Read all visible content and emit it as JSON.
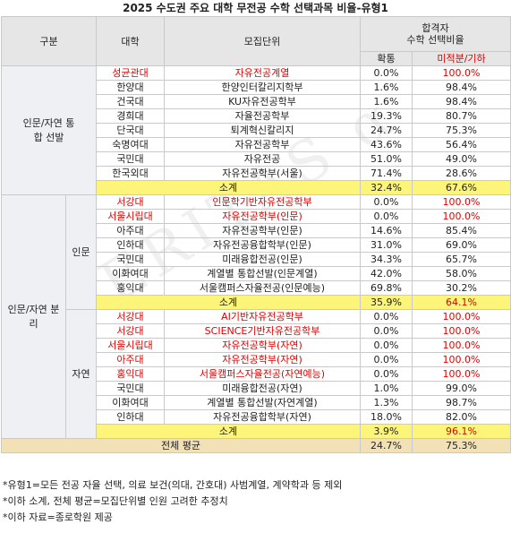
{
  "title": "2025 수도권 주요 대학 무전공 수학 선택과목 비율-유형1",
  "watermark": "VERITAS α",
  "header": {
    "col_group": "구분",
    "col_univ": "대학",
    "col_unit": "모집단위",
    "col_pass_top": "합격자",
    "col_pass_sub": "수학 선택비율",
    "col_prob": "확통",
    "col_calc": "미적분/기하"
  },
  "groups": {
    "integrated": "인문/자연 통합 선발",
    "separate": "인문/자연 분리",
    "humanities": "인문",
    "natural": "자연"
  },
  "integrated_rows": [
    {
      "univ": "성균관대",
      "unit": "자유전공계열",
      "prob": "0.0%",
      "calc": "100.0%",
      "red": true
    },
    {
      "univ": "한양대",
      "unit": "한양인터칼리지학부",
      "prob": "1.6%",
      "calc": "98.4%",
      "red": false
    },
    {
      "univ": "건국대",
      "unit": "KU자유전공학부",
      "prob": "1.6%",
      "calc": "98.4%",
      "red": false
    },
    {
      "univ": "경희대",
      "unit": "자율전공학부",
      "prob": "19.3%",
      "calc": "80.7%",
      "red": false
    },
    {
      "univ": "단국대",
      "unit": "퇴계혁신칼리지",
      "prob": "24.7%",
      "calc": "75.3%",
      "red": false
    },
    {
      "univ": "숙명여대",
      "unit": "자유전공학부",
      "prob": "43.6%",
      "calc": "56.4%",
      "red": false
    },
    {
      "univ": "국민대",
      "unit": "자유전공",
      "prob": "51.0%",
      "calc": "49.0%",
      "red": false
    },
    {
      "univ": "한국외대",
      "unit": "자유전공학부(서울)",
      "prob": "71.4%",
      "calc": "28.6%",
      "red": false
    }
  ],
  "integrated_subtotal": {
    "label": "소계",
    "prob": "32.4%",
    "calc": "67.6%"
  },
  "humanities_rows": [
    {
      "univ": "서강대",
      "unit": "인문학기반자유전공학부",
      "prob": "0.0%",
      "calc": "100.0%",
      "red": true
    },
    {
      "univ": "서울시립대",
      "unit": "자유전공학부(인문)",
      "prob": "0.0%",
      "calc": "100.0%",
      "red": true
    },
    {
      "univ": "아주대",
      "unit": "자유전공학부(인문)",
      "prob": "14.6%",
      "calc": "85.4%",
      "red": false
    },
    {
      "univ": "인하대",
      "unit": "자유전공융합학부(인문)",
      "prob": "31.0%",
      "calc": "69.0%",
      "red": false
    },
    {
      "univ": "국민대",
      "unit": "미래융합전공(인문)",
      "prob": "34.3%",
      "calc": "65.7%",
      "red": false
    },
    {
      "univ": "이화여대",
      "unit": "계열별 통합선발(인문계열)",
      "prob": "42.0%",
      "calc": "58.0%",
      "red": false
    },
    {
      "univ": "홍익대",
      "unit": "서울캠퍼스자율전공(인문예능)",
      "prob": "69.8%",
      "calc": "30.2%",
      "red": false
    }
  ],
  "humanities_subtotal": {
    "label": "소계",
    "prob": "35.9%",
    "calc": "64.1%"
  },
  "natural_rows": [
    {
      "univ": "서강대",
      "unit": "AI기반자유전공학부",
      "prob": "0.0%",
      "calc": "100.0%",
      "red": true
    },
    {
      "univ": "서강대",
      "unit": "SCIENCE기반자유전공학부",
      "prob": "0.0%",
      "calc": "100.0%",
      "red": true
    },
    {
      "univ": "서울시립대",
      "unit": "자유전공학부(자연)",
      "prob": "0.0%",
      "calc": "100.0%",
      "red": true
    },
    {
      "univ": "아주대",
      "unit": "자유전공학부(자연)",
      "prob": "0.0%",
      "calc": "100.0%",
      "red": true
    },
    {
      "univ": "홍익대",
      "unit": "서울캠퍼스자율전공(자연예능)",
      "prob": "0.0%",
      "calc": "100.0%",
      "red": true
    },
    {
      "univ": "국민대",
      "unit": "미래융합전공(자연)",
      "prob": "1.0%",
      "calc": "99.0%",
      "red": false
    },
    {
      "univ": "이화여대",
      "unit": "계열별 통합선발(자연계열)",
      "prob": "1.3%",
      "calc": "98.7%",
      "red": false
    },
    {
      "univ": "인하대",
      "unit": "자유전공융합학부(자연)",
      "prob": "18.0%",
      "calc": "82.0%",
      "red": false
    }
  ],
  "natural_subtotal": {
    "label": "소계",
    "prob": "3.9%",
    "calc": "96.1%"
  },
  "total": {
    "label": "전체 평균",
    "prob": "24.7%",
    "calc": "75.3%"
  },
  "notes": [
    "*유형1=모든 전공 자율 선택, 의료 보건(의대, 간호대) 사범계열, 계약학과 등 제외",
    "*이하 소계, 전체 평균=모집단위별 인원 고려한 추정치",
    "*이하 자료=종로학원 제공"
  ]
}
